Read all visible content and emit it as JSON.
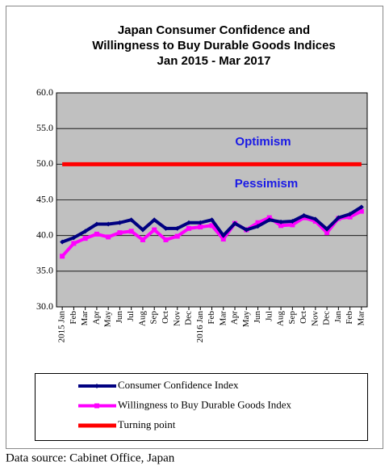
{
  "chart_data": {
    "type": "line",
    "title": [
      "Japan Consumer Confidence and",
      "Willingness to Buy Durable Goods Indices",
      "Jan 2015 - Mar 2017"
    ],
    "categories": [
      "2015 Jan",
      "Feb",
      "Mar",
      "Apr",
      "May",
      "Jun",
      "Jul",
      "Aug",
      "Sep",
      "Oct",
      "Nov",
      "Dec",
      "2016 Jan",
      "Feb",
      "Mar",
      "Apr",
      "May",
      "Jun",
      "Jul",
      "Aug",
      "Sep",
      "Oct",
      "Nov",
      "Dec",
      "Jan",
      "Feb",
      "Mar"
    ],
    "series": [
      {
        "name": "Consumer Confidence Index",
        "color": "#000080",
        "marker": "diamond",
        "values": [
          39.1,
          39.7,
          40.6,
          41.6,
          41.6,
          41.8,
          42.2,
          40.8,
          42.2,
          41.0,
          41.0,
          41.8,
          41.8,
          42.2,
          40.0,
          41.7,
          40.8,
          41.3,
          42.2,
          41.9,
          42.0,
          42.8,
          42.3,
          40.9,
          42.5,
          43.0,
          44.0
        ]
      },
      {
        "name": "Willingness to Buy Durable Goods Index",
        "color": "#ff00ff",
        "marker": "square",
        "values": [
          37.1,
          38.9,
          39.6,
          40.2,
          39.8,
          40.4,
          40.6,
          39.4,
          40.8,
          39.4,
          39.9,
          41.0,
          41.2,
          41.4,
          39.5,
          41.7,
          40.8,
          41.8,
          42.5,
          41.4,
          41.5,
          42.5,
          42.0,
          40.4,
          42.4,
          42.6,
          43.4
        ]
      },
      {
        "name": "Turning point",
        "color": "#ff0000",
        "marker": "none",
        "values": [
          50,
          50,
          50,
          50,
          50,
          50,
          50,
          50,
          50,
          50,
          50,
          50,
          50,
          50,
          50,
          50,
          50,
          50,
          50,
          50,
          50,
          50,
          50,
          50,
          50,
          50,
          50
        ]
      }
    ],
    "ylim": [
      30,
      60
    ],
    "yticks": [
      {
        "value": 30,
        "label": "30.0"
      },
      {
        "value": 35,
        "label": "35.0"
      },
      {
        "value": 40,
        "label": "40.0"
      },
      {
        "value": 45,
        "label": "45.0"
      },
      {
        "value": 50,
        "label": "50.0"
      },
      {
        "value": 55,
        "label": "55.0"
      },
      {
        "value": 60,
        "label": "60.0"
      }
    ],
    "grid": true,
    "plot_background": "#c0c0c0",
    "annotations": [
      "Optimism",
      "Pessimism"
    ],
    "source": "Data source: Cabinet Office, Japan"
  }
}
